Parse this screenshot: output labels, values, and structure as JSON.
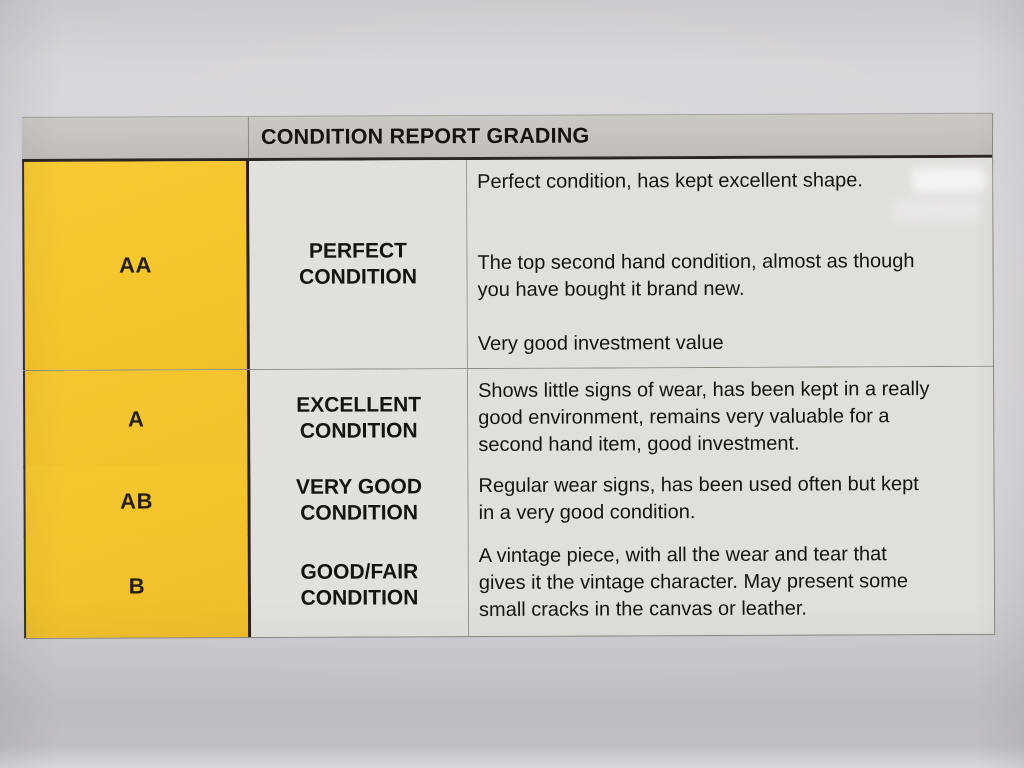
{
  "document": {
    "title": "CONDITION REPORT GRADING",
    "rows": [
      {
        "grade": "AA",
        "name": "PERFECT CONDITION",
        "desc_lines": [
          "Perfect condition, has kept excellent shape.",
          "",
          "",
          "The top second hand condition, almost as though",
          "you have bought it brand new.",
          "",
          "Very good investment value"
        ]
      },
      {
        "grade": "A",
        "name": "EXCELLENT CONDITION",
        "desc_lines": [
          "Shows little signs of wear, has been kept in a really",
          "good environment, remains very valuable for a",
          "second hand item, good investment."
        ]
      },
      {
        "grade": "AB",
        "name": "VERY GOOD CONDITION",
        "desc_lines": [
          "Regular wear signs, has been used often but kept",
          "in a very good condition."
        ]
      },
      {
        "grade": "B",
        "name": "GOOD/FAIR CONDITION",
        "desc_lines": [
          "A vintage piece, with all the wear and tear that",
          "gives it the vintage character. May present some",
          "small cracks in the canvas or leather."
        ]
      }
    ],
    "colors": {
      "grade_cell_yellow": "#f6c52e",
      "header_gray": "#c6c3be",
      "cell_gray": "#e0dfdb",
      "paper": "#d8d6da",
      "text": "#17140f"
    }
  }
}
